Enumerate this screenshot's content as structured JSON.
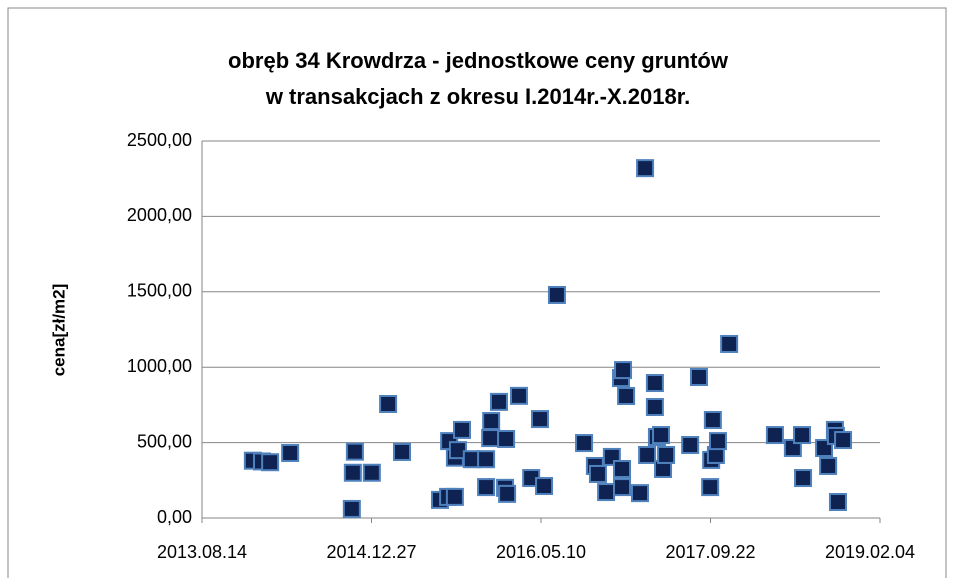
{
  "chart_data": {
    "type": "scatter",
    "title": [
      "obręb 34 Krowdrza  - jednostkowe ceny gruntów",
      "w transakcjach z okresu I.2014r.-X.2018r."
    ],
    "y_label": "cena[zł/m2]",
    "color": "#0f2352",
    "edge_color": "#4f81bd",
    "grid": true,
    "xlim": [
      41500,
      43500
    ],
    "xticks": [
      {
        "value": 41500,
        "label": "2013.08.14"
      },
      {
        "value": 42000,
        "label": "2014.12.27"
      },
      {
        "value": 42500,
        "label": "2016.05.10"
      },
      {
        "value": 43000,
        "label": "2017.09.22"
      },
      {
        "value": 43500,
        "label": "2019.02.04"
      }
    ],
    "ylim": [
      0,
      2500
    ],
    "yticks": [
      {
        "value": 0,
        "label": "0,00"
      },
      {
        "value": 500,
        "label": "500,00"
      },
      {
        "value": 1000,
        "label": "1000,00"
      },
      {
        "value": 1500,
        "label": "1500,00"
      },
      {
        "value": 2000,
        "label": "2000,00"
      },
      {
        "value": 2500,
        "label": "2500,00"
      }
    ],
    "x": [
      41650,
      41677,
      41701,
      41760,
      41942,
      41945,
      41951,
      42001,
      42049,
      42090,
      42202,
      42226,
      42246,
      42229,
      42246,
      42255,
      42267,
      42296,
      42338,
      42338,
      42350,
      42353,
      42376,
      42394,
      42400,
      42397,
      42435,
      42471,
      42497,
      42509,
      42547,
      42627,
      42659,
      42668,
      42692,
      42709,
      42736,
      42742,
      42751,
      42739,
      42739,
      42792,
      42807,
      42813,
      42836,
      42836,
      42842,
      42854,
      42860,
      42869,
      42940,
      42966,
      42999,
      43002,
      43007,
      43016,
      43022,
      43055,
      43190,
      43243,
      43270,
      43273,
      43335,
      43347,
      43367,
      43370,
      43391,
      43376
    ],
    "values": [
      380,
      375,
      370,
      431,
      60,
      300,
      440,
      300,
      756,
      438,
      120,
      140,
      140,
      510,
      400,
      450,
      584,
      390,
      390,
      205,
      530,
      643,
      770,
      200,
      160,
      524,
      810,
      265,
      656,
      212,
      1479,
      497,
      345,
      292,
      172,
      405,
      928,
      981,
      809,
      325,
      205,
      165,
      2320,
      418,
      895,
      736,
      537,
      550,
      325,
      418,
      484,
      935,
      205,
      385,
      650,
      418,
      510,
      1154,
      550,
      464,
      550,
      265,
      464,
      345,
      584,
      544,
      517,
      106
    ]
  }
}
